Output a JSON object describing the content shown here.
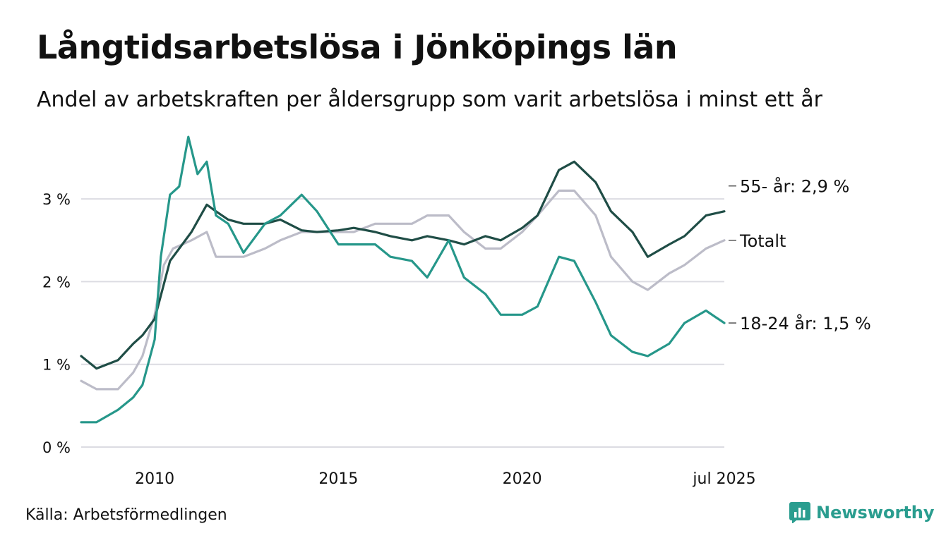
{
  "title": "Långtidsarbetslösa i Jönköpings län",
  "subtitle": "Andel av arbetskraften per åldersgrupp som varit arbetslösa i minst ett år",
  "source": "Källa: Arbetsförmedlingen",
  "brand": {
    "name": "Newsworthy",
    "icon": "bar-chart-logo-icon",
    "color": "#2a9d8f"
  },
  "chart_data": {
    "type": "line",
    "x_range": [
      "2008-01",
      "2025-07"
    ],
    "ylim": [
      0,
      3.7
    ],
    "y_ticks": [
      {
        "value": 0,
        "label": "0 %"
      },
      {
        "value": 1,
        "label": "1 %"
      },
      {
        "value": 2,
        "label": "2 %"
      },
      {
        "value": 3,
        "label": "3 %"
      }
    ],
    "x_ticks": [
      {
        "value": "2010-01",
        "label": "2010"
      },
      {
        "value": "2015-01",
        "label": "2015"
      },
      {
        "value": "2020-01",
        "label": "2020"
      },
      {
        "value": "2025-07",
        "label": "jul 2025"
      }
    ],
    "grid": true,
    "series": [
      {
        "name": "Totalt",
        "end_label": "Totalt",
        "color": "#bcbcc8",
        "points": [
          [
            "2008-01",
            0.8
          ],
          [
            "2008-06",
            0.7
          ],
          [
            "2009-01",
            0.7
          ],
          [
            "2009-06",
            0.9
          ],
          [
            "2009-09",
            1.1
          ],
          [
            "2010-01",
            1.6
          ],
          [
            "2010-04",
            2.2
          ],
          [
            "2010-07",
            2.4
          ],
          [
            "2011-01",
            2.5
          ],
          [
            "2011-06",
            2.6
          ],
          [
            "2011-09",
            2.3
          ],
          [
            "2012-06",
            2.3
          ],
          [
            "2013-01",
            2.4
          ],
          [
            "2013-06",
            2.5
          ],
          [
            "2014-01",
            2.6
          ],
          [
            "2015-01",
            2.6
          ],
          [
            "2015-06",
            2.6
          ],
          [
            "2016-01",
            2.7
          ],
          [
            "2016-06",
            2.7
          ],
          [
            "2017-01",
            2.7
          ],
          [
            "2017-06",
            2.8
          ],
          [
            "2018-01",
            2.8
          ],
          [
            "2018-06",
            2.6
          ],
          [
            "2019-01",
            2.4
          ],
          [
            "2019-06",
            2.4
          ],
          [
            "2020-01",
            2.6
          ],
          [
            "2020-06",
            2.8
          ],
          [
            "2021-01",
            3.1
          ],
          [
            "2021-06",
            3.1
          ],
          [
            "2022-01",
            2.8
          ],
          [
            "2022-06",
            2.3
          ],
          [
            "2023-01",
            2.0
          ],
          [
            "2023-06",
            1.9
          ],
          [
            "2024-01",
            2.1
          ],
          [
            "2024-06",
            2.2
          ],
          [
            "2025-01",
            2.4
          ],
          [
            "2025-07",
            2.5
          ]
        ]
      },
      {
        "name": "55- år",
        "end_label": "55- år: 2,9 %",
        "color": "#1f4d46",
        "points": [
          [
            "2008-01",
            1.1
          ],
          [
            "2008-06",
            0.95
          ],
          [
            "2009-01",
            1.05
          ],
          [
            "2009-06",
            1.25
          ],
          [
            "2009-09",
            1.35
          ],
          [
            "2010-01",
            1.55
          ],
          [
            "2010-06",
            2.25
          ],
          [
            "2011-01",
            2.6
          ],
          [
            "2011-06",
            2.93
          ],
          [
            "2011-09",
            2.85
          ],
          [
            "2012-01",
            2.75
          ],
          [
            "2012-06",
            2.7
          ],
          [
            "2013-01",
            2.7
          ],
          [
            "2013-06",
            2.75
          ],
          [
            "2014-01",
            2.62
          ],
          [
            "2014-06",
            2.6
          ],
          [
            "2015-01",
            2.62
          ],
          [
            "2015-06",
            2.65
          ],
          [
            "2016-01",
            2.6
          ],
          [
            "2016-06",
            2.55
          ],
          [
            "2017-01",
            2.5
          ],
          [
            "2017-06",
            2.55
          ],
          [
            "2018-01",
            2.5
          ],
          [
            "2018-06",
            2.45
          ],
          [
            "2019-01",
            2.55
          ],
          [
            "2019-06",
            2.5
          ],
          [
            "2020-01",
            2.65
          ],
          [
            "2020-06",
            2.8
          ],
          [
            "2021-01",
            3.35
          ],
          [
            "2021-06",
            3.45
          ],
          [
            "2022-01",
            3.2
          ],
          [
            "2022-06",
            2.85
          ],
          [
            "2023-01",
            2.6
          ],
          [
            "2023-06",
            2.3
          ],
          [
            "2024-01",
            2.45
          ],
          [
            "2024-06",
            2.55
          ],
          [
            "2025-01",
            2.8
          ],
          [
            "2025-07",
            2.85
          ]
        ]
      },
      {
        "name": "18-24 år",
        "end_label": "18-24 år: 1,5 %",
        "color": "#26978a",
        "points": [
          [
            "2008-01",
            0.3
          ],
          [
            "2008-06",
            0.3
          ],
          [
            "2009-01",
            0.45
          ],
          [
            "2009-06",
            0.6
          ],
          [
            "2009-09",
            0.75
          ],
          [
            "2010-01",
            1.3
          ],
          [
            "2010-03",
            2.3
          ],
          [
            "2010-06",
            3.05
          ],
          [
            "2010-09",
            3.15
          ],
          [
            "2010-12",
            3.75
          ],
          [
            "2011-03",
            3.3
          ],
          [
            "2011-06",
            3.45
          ],
          [
            "2011-09",
            2.8
          ],
          [
            "2012-01",
            2.7
          ],
          [
            "2012-06",
            2.35
          ],
          [
            "2013-01",
            2.7
          ],
          [
            "2013-06",
            2.8
          ],
          [
            "2014-01",
            3.05
          ],
          [
            "2014-06",
            2.85
          ],
          [
            "2015-01",
            2.45
          ],
          [
            "2015-06",
            2.45
          ],
          [
            "2016-01",
            2.45
          ],
          [
            "2016-06",
            2.3
          ],
          [
            "2017-01",
            2.25
          ],
          [
            "2017-06",
            2.05
          ],
          [
            "2018-01",
            2.5
          ],
          [
            "2018-06",
            2.05
          ],
          [
            "2019-01",
            1.85
          ],
          [
            "2019-06",
            1.6
          ],
          [
            "2020-01",
            1.6
          ],
          [
            "2020-06",
            1.7
          ],
          [
            "2021-01",
            2.3
          ],
          [
            "2021-06",
            2.25
          ],
          [
            "2022-01",
            1.75
          ],
          [
            "2022-06",
            1.35
          ],
          [
            "2023-01",
            1.15
          ],
          [
            "2023-06",
            1.1
          ],
          [
            "2024-01",
            1.25
          ],
          [
            "2024-06",
            1.5
          ],
          [
            "2025-01",
            1.65
          ],
          [
            "2025-07",
            1.5
          ]
        ]
      }
    ]
  }
}
